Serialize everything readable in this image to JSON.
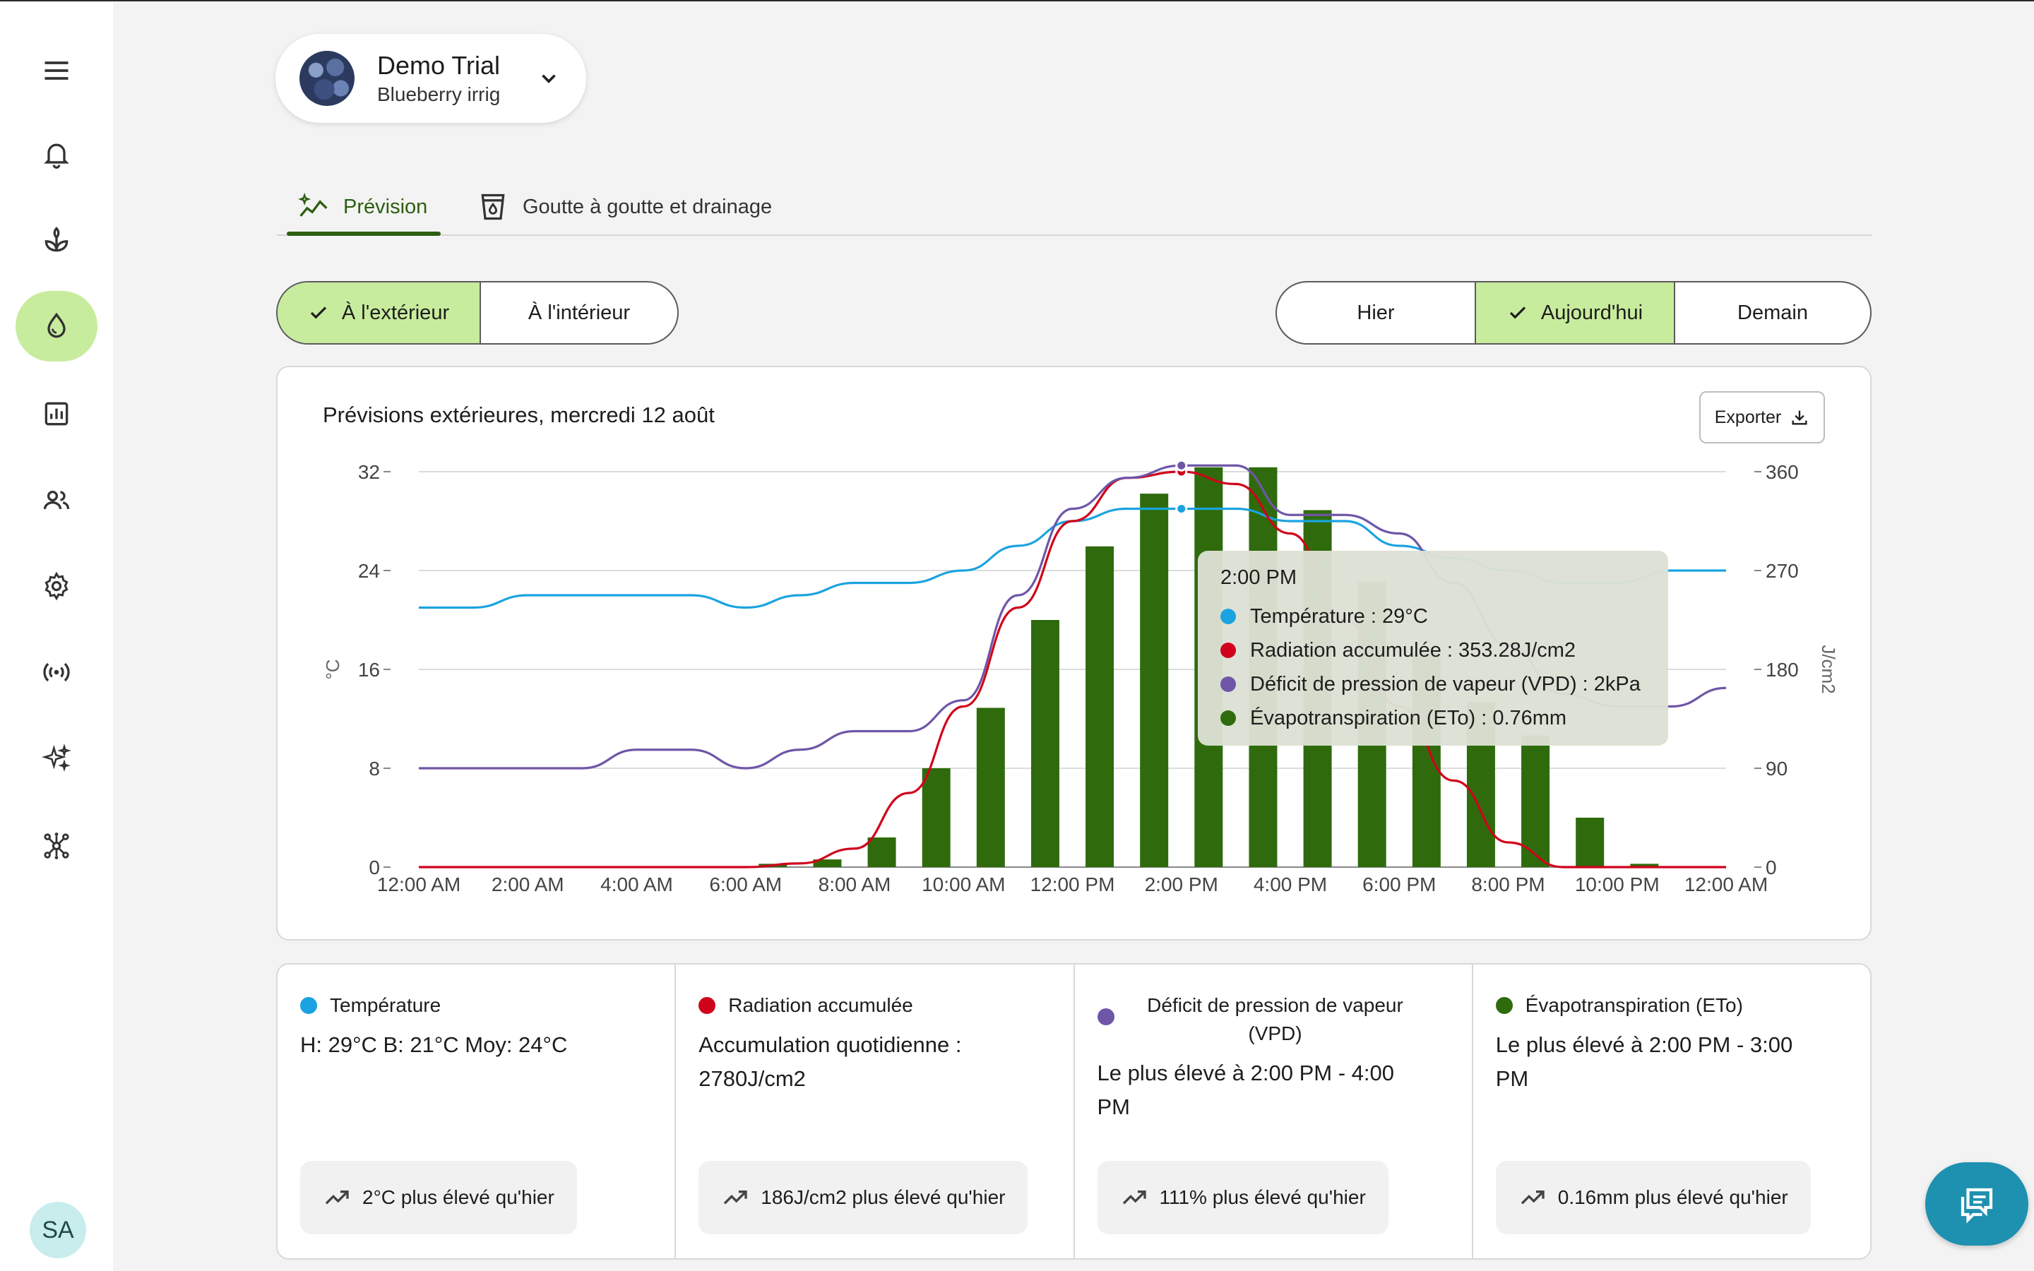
{
  "farm": {
    "name": "Demo Trial",
    "subtitle": "Blueberry irrig"
  },
  "tabs": [
    {
      "label": "Prévision",
      "icon": "chart-sparkle-icon",
      "active": true
    },
    {
      "label": "Goutte à goutte et drainage",
      "icon": "cup-drop-icon",
      "active": false
    }
  ],
  "location_toggle": [
    {
      "label": "À l'extérieur",
      "active": true
    },
    {
      "label": "À l'intérieur",
      "active": false
    }
  ],
  "day_toggle": [
    {
      "label": "Hier",
      "active": false
    },
    {
      "label": "Aujourd'hui",
      "active": true
    },
    {
      "label": "Demain",
      "active": false
    }
  ],
  "chart_card": {
    "title": "Prévisions extérieures, mercredi 12 août",
    "export_label": "Exporter"
  },
  "tooltip": {
    "time": "2:00 PM",
    "rows": [
      {
        "text": "Température : 29°C",
        "color": "#1aa3e0"
      },
      {
        "text": "Radiation accumulée : 353.28J/cm2",
        "color": "#d0021b"
      },
      {
        "text": "Déficit de pression de vapeur (VPD) : 2kPa",
        "color": "#6f56a8"
      },
      {
        "text": "Évapotranspiration (ETo) : 0.76mm",
        "color": "#2f6b0c"
      }
    ]
  },
  "chart_data": {
    "type": "bar",
    "x": [
      "12:00 AM",
      "1:00 AM",
      "2:00 AM",
      "3:00 AM",
      "4:00 AM",
      "5:00 AM",
      "6:00 AM",
      "7:00 AM",
      "8:00 AM",
      "9:00 AM",
      "10:00 AM",
      "11:00 AM",
      "12:00 PM",
      "1:00 PM",
      "2:00 PM",
      "3:00 PM",
      "4:00 PM",
      "5:00 PM",
      "6:00 PM",
      "7:00 PM",
      "8:00 PM",
      "9:00 PM",
      "10:00 PM",
      "11:00 PM",
      "12:00 AM"
    ],
    "x_tick_labels": [
      "12:00 AM",
      "2:00 AM",
      "4:00 AM",
      "6:00 AM",
      "8:00 AM",
      "10:00 AM",
      "12:00 PM",
      "2:00 PM",
      "4:00 PM",
      "6:00 PM",
      "8:00 PM",
      "10:00 PM",
      "12:00 AM"
    ],
    "y_left": {
      "label": "°C",
      "ticks": [
        "0",
        "8",
        "16",
        "24",
        "32"
      ],
      "range": [
        0,
        32
      ]
    },
    "y_right": {
      "label": "J/cm2",
      "ticks": [
        "0",
        "90",
        "180",
        "270",
        "360"
      ],
      "range": [
        0,
        360
      ]
    },
    "series": [
      {
        "name": "Évapotranspiration (ETo)",
        "type": "bar",
        "color": "#2f6b0c",
        "axis": "right",
        "values": [
          0,
          0,
          0,
          0,
          0,
          0,
          3,
          7,
          27,
          90,
          145,
          225,
          292,
          340,
          364,
          364,
          325,
          260,
          195,
          150,
          120,
          45,
          3,
          0,
          null
        ]
      },
      {
        "name": "Température",
        "type": "line",
        "color": "#1aa3e0",
        "axis": "left",
        "values": [
          21,
          21,
          22,
          22,
          22,
          22,
          21,
          22,
          23,
          23,
          24,
          26,
          28,
          29,
          29,
          29,
          28,
          28,
          26,
          25,
          24,
          23,
          23,
          24,
          24
        ]
      },
      {
        "name": "Radiation accumulée",
        "type": "line",
        "color": "#d0021b",
        "axis": "left",
        "values": [
          0,
          0,
          0,
          0,
          0,
          0,
          0,
          0.3,
          1.5,
          6,
          13,
          21,
          28,
          31.5,
          32,
          31,
          27,
          20,
          13,
          7,
          2,
          0,
          0,
          0,
          0
        ]
      },
      {
        "name": "Déficit de pression de vapeur (VPD)",
        "type": "line",
        "color": "#6f56a8",
        "axis": "left",
        "values": [
          8,
          8,
          8,
          8,
          9.5,
          9.5,
          8,
          9.5,
          11,
          11,
          13.5,
          22,
          29,
          31.5,
          32.5,
          32.5,
          28.5,
          28.5,
          27,
          23,
          18,
          14,
          13,
          13,
          14.5
        ]
      }
    ],
    "grid": true,
    "legend": "bottom"
  },
  "summary": [
    {
      "title": "Température",
      "color": "#1aa3e0",
      "body": "H: 29°C B: 21°C Moy: 24°C",
      "chip": "2°C plus élevé qu'hier"
    },
    {
      "title": "Radiation accumulée",
      "color": "#d0021b",
      "body": "Accumulation quotidienne : 2780J/cm2",
      "chip": "186J/cm2 plus élevé qu'hier"
    },
    {
      "title": "Déficit de pression de vapeur (VPD)",
      "color": "#6f56a8",
      "body": "Le plus élevé à 2:00 PM - 4:00 PM",
      "chip": "111% plus élevé qu'hier"
    },
    {
      "title": "Évapotranspiration (ETo)",
      "color": "#2f6b0c",
      "body": "Le plus élevé à 2:00 PM - 3:00 PM",
      "chip": "0.16mm plus élevé qu'hier"
    }
  ],
  "user": {
    "initials": "SA"
  },
  "sidebar": {
    "items": [
      {
        "icon": "menu-icon"
      },
      {
        "icon": "bell-icon"
      },
      {
        "icon": "sprout-icon"
      },
      {
        "icon": "water-drop-icon",
        "active": true
      },
      {
        "icon": "bar-chart-icon"
      },
      {
        "icon": "users-icon"
      },
      {
        "icon": "gear-icon"
      },
      {
        "icon": "signal-icon"
      },
      {
        "icon": "sparkle-icon"
      },
      {
        "icon": "network-icon"
      }
    ]
  }
}
